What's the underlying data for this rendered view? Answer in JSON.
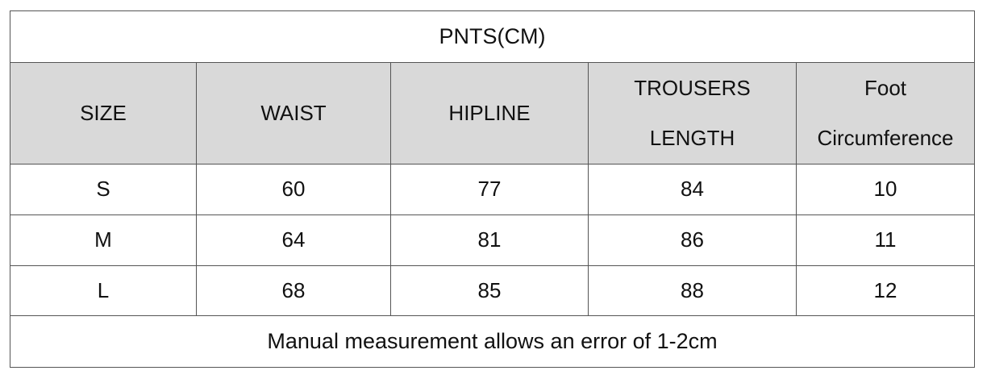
{
  "table": {
    "title": "PNTS(CM)",
    "header": [
      [
        "SIZE"
      ],
      [
        "WAIST"
      ],
      [
        "HIPLINE"
      ],
      [
        "TROUSERS",
        "LENGTH"
      ],
      [
        "Foot",
        "Circumference"
      ]
    ],
    "rows": [
      [
        "S",
        60,
        77,
        84,
        10
      ],
      [
        "M",
        64,
        81,
        86,
        11
      ],
      [
        "L",
        68,
        85,
        88,
        12
      ]
    ],
    "note": "Manual measurement allows an error of 1-2cm"
  }
}
